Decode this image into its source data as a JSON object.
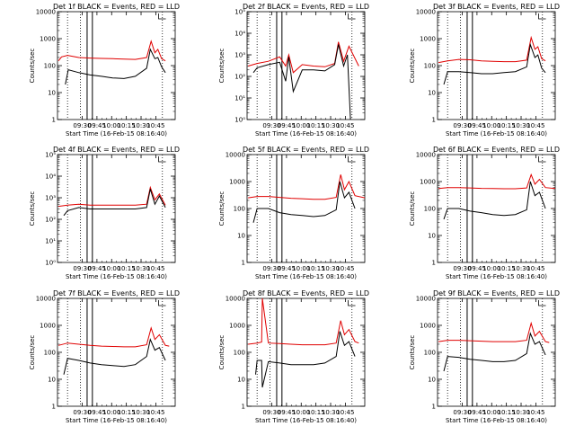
{
  "colors": {
    "events": "#000000",
    "lld": "#e00000",
    "axes": "#000000"
  },
  "chart_data": [
    {
      "type": "line",
      "title": "Det 1f BLACK = Events, RED = LLD",
      "xlabel": "Start Time (16-Feb-15 08:16:40)",
      "ylabel": "Counts/sec",
      "yscale": "log",
      "ylim": [
        1,
        10000
      ],
      "ytick_labels": [
        "1",
        "10",
        "100",
        "1000",
        "10000"
      ],
      "xlim": [
        "08:16:40",
        "10:53:00"
      ],
      "xtick_labels": [
        "09:30",
        "09:45",
        "10:00",
        "10:15",
        "10:30",
        "10:45"
      ],
      "grid": false,
      "series": [
        {
          "color": "#e00000",
          "x": [
            "08:18",
            "08:22",
            "08:30",
            "08:45",
            "09:00",
            "09:15",
            "09:30",
            "09:45",
            "10:00",
            "10:15",
            "10:21",
            "10:26",
            "10:30",
            "10:35",
            "10:40"
          ],
          "values": [
            150,
            210,
            240,
            200,
            190,
            185,
            180,
            175,
            170,
            200,
            800,
            300,
            400,
            180,
            150
          ]
        },
        {
          "color": "#000000",
          "x": [
            "08:27",
            "08:31",
            "08:45",
            "09:00",
            "09:15",
            "09:30",
            "09:45",
            "10:00",
            "10:15",
            "10:20",
            "10:26",
            "10:30",
            "10:35",
            "10:40"
          ],
          "values": [
            20,
            70,
            55,
            45,
            40,
            35,
            33,
            40,
            80,
            400,
            180,
            200,
            90,
            55
          ]
        }
      ]
    },
    {
      "type": "line",
      "title": "Det 2f BLACK = Events, RED = LLD",
      "xlabel": "Start Time (16-Feb-15 08:16:40)",
      "ylabel": "Counts/sec",
      "yscale": "log",
      "ylim": [
        1,
        100000
      ],
      "ytick_labels": [
        "10⁰",
        "10¹",
        "10²",
        "10³",
        "10⁴",
        "10⁵"
      ],
      "xlim": [
        "08:16:40",
        "10:53:00"
      ],
      "xtick_labels": [
        "09:30",
        "09:45",
        "10:00",
        "10:15",
        "10:30",
        "10:45"
      ],
      "grid": false,
      "series": [
        {
          "color": "#e00000",
          "x": [
            "08:18",
            "08:30",
            "08:45",
            "09:00",
            "09:08",
            "09:12",
            "09:18",
            "09:30",
            "09:45",
            "10:00",
            "10:13",
            "10:18",
            "10:25",
            "10:32",
            "10:45"
          ],
          "values": [
            300,
            400,
            500,
            800,
            300,
            1000,
            150,
            350,
            300,
            280,
            400,
            4000,
            500,
            2500,
            300
          ]
        },
        {
          "color": "#000000",
          "x": [
            "08:25",
            "08:30",
            "08:45",
            "09:00",
            "09:08",
            "09:12",
            "09:18",
            "09:30",
            "09:45",
            "10:00",
            "10:13",
            "10:18",
            "10:25",
            "10:30",
            "10:34"
          ],
          "values": [
            150,
            250,
            350,
            450,
            60,
            800,
            20,
            200,
            200,
            180,
            350,
            3000,
            300,
            1000,
            1
          ]
        }
      ]
    },
    {
      "type": "line",
      "title": "Det 3f BLACK = Events, RED = LLD",
      "xlabel": "Start Time (16-Feb-15 08:16:40)",
      "ylabel": "Counts/sec",
      "yscale": "log",
      "ylim": [
        1,
        10000
      ],
      "ytick_labels": [
        "1",
        "10",
        "100",
        "1000",
        "10000"
      ],
      "xlim": [
        "08:16:40",
        "10:53:00"
      ],
      "xtick_labels": [
        "09:30",
        "09:45",
        "10:00",
        "10:15",
        "10:30",
        "10:45"
      ],
      "grid": false,
      "series": [
        {
          "color": "#e00000",
          "x": [
            "08:18",
            "08:30",
            "08:45",
            "09:00",
            "09:15",
            "09:30",
            "09:45",
            "10:00",
            "10:15",
            "10:21",
            "10:26",
            "10:30",
            "10:35",
            "10:40"
          ],
          "values": [
            130,
            150,
            170,
            165,
            150,
            145,
            140,
            140,
            160,
            1100,
            400,
            500,
            180,
            150
          ]
        },
        {
          "color": "#000000",
          "x": [
            "08:25",
            "08:30",
            "08:45",
            "09:00",
            "09:15",
            "09:30",
            "09:45",
            "10:00",
            "10:15",
            "10:20",
            "10:26",
            "10:30",
            "10:35",
            "10:40"
          ],
          "values": [
            20,
            60,
            60,
            55,
            50,
            50,
            55,
            60,
            90,
            600,
            200,
            250,
            80,
            55
          ]
        }
      ]
    },
    {
      "type": "line",
      "title": "Det 4f BLACK = Events, RED = LLD",
      "xlabel": "Start Time (16-Feb-15 08:16:40)",
      "ylabel": "Counts/sec",
      "yscale": "log",
      "ylim": [
        1,
        100000
      ],
      "ytick_labels": [
        "10⁰",
        "10¹",
        "10²",
        "10³",
        "10⁴",
        "10⁵"
      ],
      "xlim": [
        "08:16:40",
        "10:53:00"
      ],
      "xtick_labels": [
        "09:30",
        "09:45",
        "10:00",
        "10:15",
        "10:30",
        "10:45"
      ],
      "grid": false,
      "series": [
        {
          "color": "#e00000",
          "x": [
            "08:18",
            "08:30",
            "08:45",
            "09:00",
            "09:15",
            "09:30",
            "09:45",
            "10:00",
            "10:15",
            "10:20",
            "10:26",
            "10:32",
            "10:40"
          ],
          "values": [
            400,
            450,
            500,
            450,
            450,
            450,
            450,
            450,
            500,
            3000,
            800,
            1500,
            450
          ]
        },
        {
          "color": "#000000",
          "x": [
            "08:25",
            "08:30",
            "08:45",
            "09:00",
            "09:15",
            "09:30",
            "09:45",
            "10:00",
            "10:15",
            "10:20",
            "10:26",
            "10:32",
            "10:40"
          ],
          "values": [
            150,
            250,
            350,
            300,
            300,
            300,
            300,
            300,
            350,
            2500,
            500,
            1200,
            350
          ]
        }
      ]
    },
    {
      "type": "line",
      "title": "Det 5f BLACK = Events, RED = LLD",
      "xlabel": "Start Time (16-Feb-15 08:16:40)",
      "ylabel": "Counts/sec",
      "yscale": "log",
      "ylim": [
        1,
        10000
      ],
      "ytick_labels": [
        "1",
        "10",
        "100",
        "1000",
        "10000"
      ],
      "xlim": [
        "08:16:40",
        "10:53:00"
      ],
      "xtick_labels": [
        "09:30",
        "09:45",
        "10:00",
        "10:15",
        "10:30",
        "10:45"
      ],
      "grid": false,
      "series": [
        {
          "color": "#e00000",
          "x": [
            "08:18",
            "08:30",
            "08:45",
            "09:00",
            "09:15",
            "09:30",
            "09:45",
            "10:00",
            "10:15",
            "10:21",
            "10:26",
            "10:32",
            "10:40",
            "10:53"
          ],
          "values": [
            250,
            280,
            280,
            260,
            240,
            230,
            220,
            220,
            260,
            1800,
            500,
            1000,
            300,
            250
          ]
        },
        {
          "color": "#000000",
          "x": [
            "08:25",
            "08:30",
            "08:45",
            "09:00",
            "09:15",
            "09:30",
            "09:45",
            "10:00",
            "10:15",
            "10:20",
            "10:26",
            "10:32",
            "10:40"
          ],
          "values": [
            30,
            100,
            100,
            70,
            60,
            55,
            50,
            55,
            90,
            1000,
            250,
            400,
            100
          ]
        }
      ]
    },
    {
      "type": "line",
      "title": "Det 6f BLACK = Events, RED = LLD",
      "xlabel": "Start Time (16-Feb-15 08:16:40)",
      "ylabel": "Counts/sec",
      "yscale": "log",
      "ylim": [
        1,
        10000
      ],
      "ytick_labels": [
        "1",
        "10",
        "100",
        "1000",
        "10000"
      ],
      "xlim": [
        "08:16:40",
        "10:53:00"
      ],
      "xtick_labels": [
        "09:30",
        "09:45",
        "10:00",
        "10:15",
        "10:30",
        "10:45"
      ],
      "grid": false,
      "series": [
        {
          "color": "#e00000",
          "x": [
            "08:18",
            "08:30",
            "08:45",
            "09:00",
            "09:15",
            "09:30",
            "09:45",
            "10:00",
            "10:15",
            "10:21",
            "10:26",
            "10:32",
            "10:40",
            "10:53"
          ],
          "values": [
            550,
            600,
            600,
            580,
            560,
            550,
            540,
            540,
            580,
            1800,
            800,
            1200,
            600,
            550
          ]
        },
        {
          "color": "#000000",
          "x": [
            "08:25",
            "08:30",
            "08:45",
            "09:00",
            "09:15",
            "09:30",
            "09:45",
            "10:00",
            "10:15",
            "10:20",
            "10:26",
            "10:32",
            "10:40"
          ],
          "values": [
            40,
            100,
            100,
            80,
            70,
            60,
            55,
            60,
            90,
            1000,
            300,
            400,
            100
          ]
        }
      ]
    },
    {
      "type": "line",
      "title": "Det 7f BLACK = Events, RED = LLD",
      "xlabel": "Start Time (16-Feb-15 08:16:40)",
      "ylabel": "Counts/sec",
      "yscale": "log",
      "ylim": [
        1,
        10000
      ],
      "ytick_labels": [
        "1",
        "10",
        "100",
        "1000",
        "10000"
      ],
      "xlim": [
        "08:16:40",
        "10:53:00"
      ],
      "xtick_labels": [
        "09:30",
        "09:45",
        "10:00",
        "10:15",
        "10:30",
        "10:45"
      ],
      "grid": false,
      "series": [
        {
          "color": "#e00000",
          "x": [
            "08:18",
            "08:30",
            "08:45",
            "09:00",
            "09:15",
            "09:30",
            "09:45",
            "10:00",
            "10:15",
            "10:21",
            "10:26",
            "10:32",
            "10:40",
            "10:45"
          ],
          "values": [
            180,
            220,
            200,
            180,
            170,
            165,
            160,
            160,
            190,
            800,
            300,
            450,
            180,
            170
          ]
        },
        {
          "color": "#000000",
          "x": [
            "08:25",
            "08:30",
            "08:45",
            "09:00",
            "09:15",
            "09:30",
            "09:45",
            "10:00",
            "10:15",
            "10:20",
            "10:26",
            "10:32",
            "10:40"
          ],
          "values": [
            15,
            60,
            50,
            40,
            35,
            32,
            30,
            35,
            70,
            300,
            120,
            150,
            50
          ]
        }
      ]
    },
    {
      "type": "line",
      "title": "Det 8f BLACK = Events, RED = LLD",
      "xlabel": "Start Time (16-Feb-15 08:16:40)",
      "ylabel": "Counts/sec",
      "yscale": "log",
      "ylim": [
        1,
        10000
      ],
      "ytick_labels": [
        "1",
        "10",
        "100",
        "1000",
        "10000"
      ],
      "xlim": [
        "08:16:40",
        "10:53:00"
      ],
      "xtick_labels": [
        "09:30",
        "09:45",
        "10:00",
        "10:15",
        "10:30",
        "10:45"
      ],
      "grid": false,
      "series": [
        {
          "color": "#e00000",
          "x": [
            "08:18",
            "08:30",
            "08:36",
            "08:37",
            "08:45",
            "09:00",
            "09:15",
            "09:30",
            "09:45",
            "10:00",
            "10:15",
            "10:21",
            "10:26",
            "10:32",
            "10:40",
            "10:45"
          ],
          "values": [
            200,
            220,
            240,
            10000,
            220,
            210,
            200,
            190,
            190,
            190,
            220,
            1500,
            450,
            700,
            250,
            220
          ]
        },
        {
          "color": "#000000",
          "x": [
            "08:28",
            "08:30",
            "08:36",
            "08:37",
            "08:45",
            "09:00",
            "09:15",
            "09:30",
            "09:45",
            "10:00",
            "10:15",
            "10:20",
            "10:26",
            "10:32",
            "10:40"
          ],
          "values": [
            15,
            50,
            50,
            5,
            45,
            40,
            35,
            35,
            35,
            40,
            70,
            600,
            180,
            250,
            70
          ]
        }
      ]
    },
    {
      "type": "line",
      "title": "Det 9f BLACK = Events, RED = LLD",
      "xlabel": "Start Time (16-Feb-15 08:16:40)",
      "ylabel": "Counts/sec",
      "yscale": "log",
      "ylim": [
        1,
        10000
      ],
      "ytick_labels": [
        "1",
        "10",
        "100",
        "1000",
        "10000"
      ],
      "xlim": [
        "08:16:40",
        "10:53:00"
      ],
      "xtick_labels": [
        "09:30",
        "09:45",
        "10:00",
        "10:15",
        "10:30",
        "10:45"
      ],
      "grid": false,
      "series": [
        {
          "color": "#e00000",
          "x": [
            "08:18",
            "08:30",
            "08:45",
            "09:00",
            "09:15",
            "09:30",
            "09:45",
            "10:00",
            "10:15",
            "10:21",
            "10:26",
            "10:32",
            "10:40",
            "10:45"
          ],
          "values": [
            250,
            280,
            280,
            270,
            260,
            250,
            250,
            250,
            280,
            1200,
            400,
            600,
            250,
            230
          ]
        },
        {
          "color": "#000000",
          "x": [
            "08:25",
            "08:30",
            "08:45",
            "09:00",
            "09:15",
            "09:30",
            "09:45",
            "10:00",
            "10:15",
            "10:20",
            "10:26",
            "10:32",
            "10:40"
          ],
          "values": [
            20,
            70,
            65,
            55,
            50,
            45,
            45,
            50,
            90,
            500,
            200,
            250,
            80
          ]
        }
      ]
    }
  ]
}
